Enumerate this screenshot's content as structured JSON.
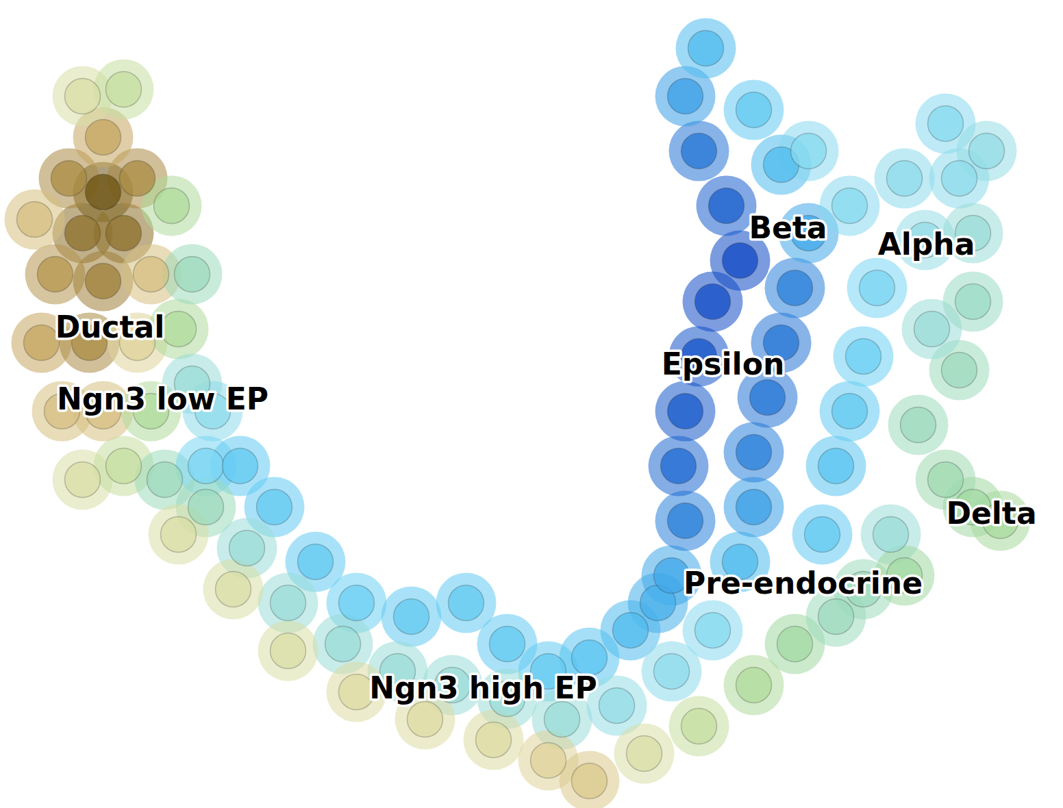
{
  "chart_data": {
    "type": "scatter",
    "tick_labels": false,
    "grid": false,
    "xlim": [
      0,
      155.2
    ],
    "ylim": [
      0,
      118
    ],
    "color_range": [
      0,
      1
    ],
    "x": [
      15,
      12,
      18,
      10,
      20,
      15,
      8,
      15,
      22,
      6,
      13,
      20,
      26,
      12,
      18,
      5,
      25,
      28,
      9,
      15,
      22,
      28,
      31,
      12,
      18,
      24,
      30,
      35,
      40,
      46,
      52,
      60,
      68,
      74,
      80,
      86,
      92,
      96,
      30,
      36,
      42,
      50,
      58,
      66,
      74,
      82,
      90,
      98,
      104,
      26,
      34,
      42,
      52,
      62,
      72,
      80,
      86,
      94,
      102,
      110,
      116,
      122,
      98,
      100,
      99,
      100,
      102,
      104,
      108,
      106,
      102,
      100,
      103,
      108,
      110,
      110,
      112,
      114,
      116,
      118,
      114,
      110,
      120,
      122,
      124,
      126,
      128,
      124,
      118,
      135,
      140,
      138,
      132,
      144,
      142,
      134,
      138,
      142,
      146,
      140,
      136,
      142,
      130,
      126,
      132
    ],
    "y": [
      90,
      84,
      84,
      92,
      92,
      98,
      78,
      77,
      78,
      68,
      68,
      68,
      70,
      104,
      105,
      86,
      88,
      78,
      58,
      58,
      58,
      62,
      58,
      48,
      50,
      48,
      50,
      50,
      44,
      36,
      30,
      28,
      30,
      24,
      20,
      22,
      26,
      30,
      44,
      38,
      30,
      24,
      20,
      18,
      16,
      13,
      15,
      20,
      26,
      40,
      32,
      23,
      17,
      13,
      10,
      7,
      4,
      8,
      12,
      18,
      24,
      28,
      34,
      42,
      50,
      58,
      66,
      74,
      80,
      88,
      96,
      104,
      111,
      36,
      44,
      52,
      60,
      68,
      76,
      84,
      94,
      102,
      40,
      50,
      58,
      66,
      76,
      88,
      96,
      83,
      92,
      100,
      92,
      96,
      84,
      56,
      48,
      44,
      42,
      64,
      70,
      74,
      40,
      32,
      34
    ],
    "values": [
      1.0,
      0.95,
      0.95,
      0.9,
      0.9,
      0.85,
      0.88,
      0.92,
      0.8,
      0.85,
      0.9,
      0.75,
      0.6,
      0.7,
      0.65,
      0.8,
      0.6,
      0.5,
      0.8,
      0.8,
      0.6,
      0.45,
      0.4,
      0.7,
      0.65,
      0.5,
      0.35,
      0.3,
      0.3,
      0.3,
      0.32,
      0.3,
      0.3,
      0.3,
      0.3,
      0.28,
      0.25,
      0.22,
      0.5,
      0.45,
      0.45,
      0.45,
      0.45,
      0.45,
      0.45,
      0.45,
      0.42,
      0.4,
      0.38,
      0.7,
      0.7,
      0.7,
      0.72,
      0.72,
      0.72,
      0.75,
      0.78,
      0.7,
      0.65,
      0.6,
      0.55,
      0.5,
      0.2,
      0.12,
      0.08,
      0.05,
      0.04,
      0.03,
      0.02,
      0.06,
      0.1,
      0.18,
      0.25,
      0.25,
      0.18,
      0.12,
      0.1,
      0.1,
      0.12,
      0.2,
      0.25,
      0.3,
      0.3,
      0.28,
      0.3,
      0.32,
      0.35,
      0.38,
      0.38,
      0.42,
      0.4,
      0.38,
      0.4,
      0.42,
      0.45,
      0.5,
      0.52,
      0.55,
      0.58,
      0.5,
      0.45,
      0.48,
      0.45,
      0.5,
      0.55
    ],
    "annotations": [
      {
        "text": "Ductal",
        "x": 16,
        "y": 70.2
      },
      {
        "text": "Ngn3 low EP",
        "x": 23.7,
        "y": 59.7
      },
      {
        "text": "Ngn3 high EP",
        "x": 70.5,
        "y": 17.5
      },
      {
        "text": "Pre-endocrine",
        "x": 117.2,
        "y": 32.8
      },
      {
        "text": "Epsilon",
        "x": 105.5,
        "y": 64.8
      },
      {
        "text": "Beta",
        "x": 115,
        "y": 84.7
      },
      {
        "text": "Alpha",
        "x": 135.2,
        "y": 82.3
      },
      {
        "text": "Delta",
        "x": 144.7,
        "y": 43
      }
    ]
  }
}
